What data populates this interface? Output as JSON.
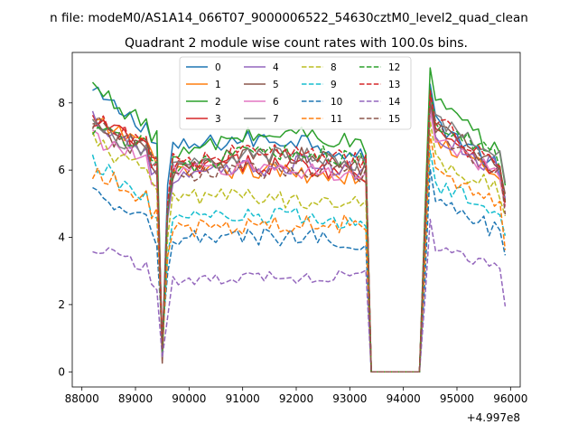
{
  "chart_data": {
    "type": "line",
    "suptitle": "n file: modeM0/AS1A14_066T07_9000006522_54630cztM0_level2_quad_clean",
    "title": "Quadrant 2 module wise count rates with 100.0s bins.",
    "xlabel": "",
    "ylabel": "",
    "x_offset_label": "+4.997e8",
    "xlim": [
      87820,
      96180
    ],
    "ylim": [
      -0.45,
      9.5
    ],
    "xticks": [
      "88000",
      "89000",
      "90000",
      "91000",
      "92000",
      "93000",
      "94000",
      "95000",
      "96000"
    ],
    "xtick_values": [
      88000,
      89000,
      90000,
      91000,
      92000,
      93000,
      94000,
      95000,
      96000
    ],
    "yticks": [
      "0",
      "2",
      "4",
      "6",
      "8"
    ],
    "ytick_values": [
      0,
      2,
      4,
      6,
      8
    ],
    "grid": false,
    "legend": {
      "location": "upper center",
      "columns": 4
    },
    "x_range": {
      "start": 88200,
      "end": 95900,
      "step": 100
    },
    "series": [
      {
        "name": "0",
        "color": "#1f77b4",
        "dash": "solid",
        "level": [
          8.3,
          7.4,
          6.6,
          6.9,
          6.9,
          6.3,
          7.6,
          5.9
        ]
      },
      {
        "name": "1",
        "color": "#ff7f0e",
        "dash": "solid",
        "level": [
          7.4,
          6.9,
          5.8,
          6.0,
          5.9,
          5.8,
          7.0,
          5.7
        ]
      },
      {
        "name": "2",
        "color": "#2ca02c",
        "dash": "solid",
        "level": [
          8.5,
          7.5,
          6.3,
          7.0,
          7.1,
          6.7,
          8.2,
          6.3
        ]
      },
      {
        "name": "3",
        "color": "#d62728",
        "dash": "solid",
        "level": [
          7.5,
          6.8,
          6.0,
          6.2,
          6.1,
          5.9,
          7.4,
          5.8
        ]
      },
      {
        "name": "4",
        "color": "#9467bd",
        "dash": "solid",
        "level": [
          7.6,
          6.6,
          5.7,
          6.0,
          6.2,
          5.9,
          7.2,
          5.9
        ]
      },
      {
        "name": "5",
        "color": "#8c564b",
        "dash": "solid",
        "level": [
          7.2,
          6.6,
          5.9,
          6.4,
          6.4,
          6.1,
          7.4,
          6.0
        ]
      },
      {
        "name": "6",
        "color": "#e377c2",
        "dash": "solid",
        "level": [
          7.0,
          6.4,
          5.9,
          6.1,
          6.0,
          5.8,
          7.2,
          5.6
        ]
      },
      {
        "name": "7",
        "color": "#7f7f7f",
        "dash": "solid",
        "level": [
          7.3,
          6.7,
          6.0,
          6.4,
          6.5,
          6.2,
          7.5,
          6.3
        ]
      },
      {
        "name": "8",
        "color": "#bcbd22",
        "dash": "dashed",
        "level": [
          6.9,
          6.0,
          5.2,
          5.2,
          5.1,
          5.1,
          6.4,
          5.3
        ]
      },
      {
        "name": "9",
        "color": "#17becf",
        "dash": "dashed",
        "level": [
          6.2,
          5.3,
          4.5,
          4.6,
          4.6,
          4.4,
          5.6,
          4.7
        ]
      },
      {
        "name": "10",
        "color": "#1f77b4",
        "dash": "dashed",
        "level": [
          5.2,
          4.6,
          3.9,
          4.0,
          4.0,
          3.9,
          5.1,
          4.1
        ]
      },
      {
        "name": "11",
        "color": "#ff7f0e",
        "dash": "dashed",
        "level": [
          6.0,
          5.3,
          4.3,
          4.3,
          4.4,
          4.4,
          6.2,
          4.8
        ]
      },
      {
        "name": "12",
        "color": "#2ca02c",
        "dash": "dashed",
        "level": [
          7.3,
          6.8,
          6.1,
          6.4,
          6.5,
          6.3,
          7.6,
          6.2
        ]
      },
      {
        "name": "13",
        "color": "#d62728",
        "dash": "dashed",
        "level": [
          7.5,
          6.9,
          6.2,
          6.5,
          6.5,
          6.2,
          7.6,
          6.1
        ]
      },
      {
        "name": "14",
        "color": "#9467bd",
        "dash": "dashed",
        "level": [
          3.7,
          3.2,
          2.7,
          2.8,
          2.8,
          2.9,
          3.8,
          3.0
        ]
      },
      {
        "name": "15",
        "color": "#8c564b",
        "dash": "dashed",
        "level": [
          7.4,
          6.8,
          5.8,
          6.0,
          6.0,
          5.9,
          7.3,
          5.8
        ]
      }
    ],
    "segments": {
      "orbit1_start": 88200,
      "orbit1_end": 89400,
      "saa1_dip": 89500,
      "orbit2_start": 89600,
      "orbit2_end": 93300,
      "gap_start": 93400,
      "gap_end": 94300,
      "orbit3_start": 94500,
      "orbit3_end": 95900
    }
  }
}
